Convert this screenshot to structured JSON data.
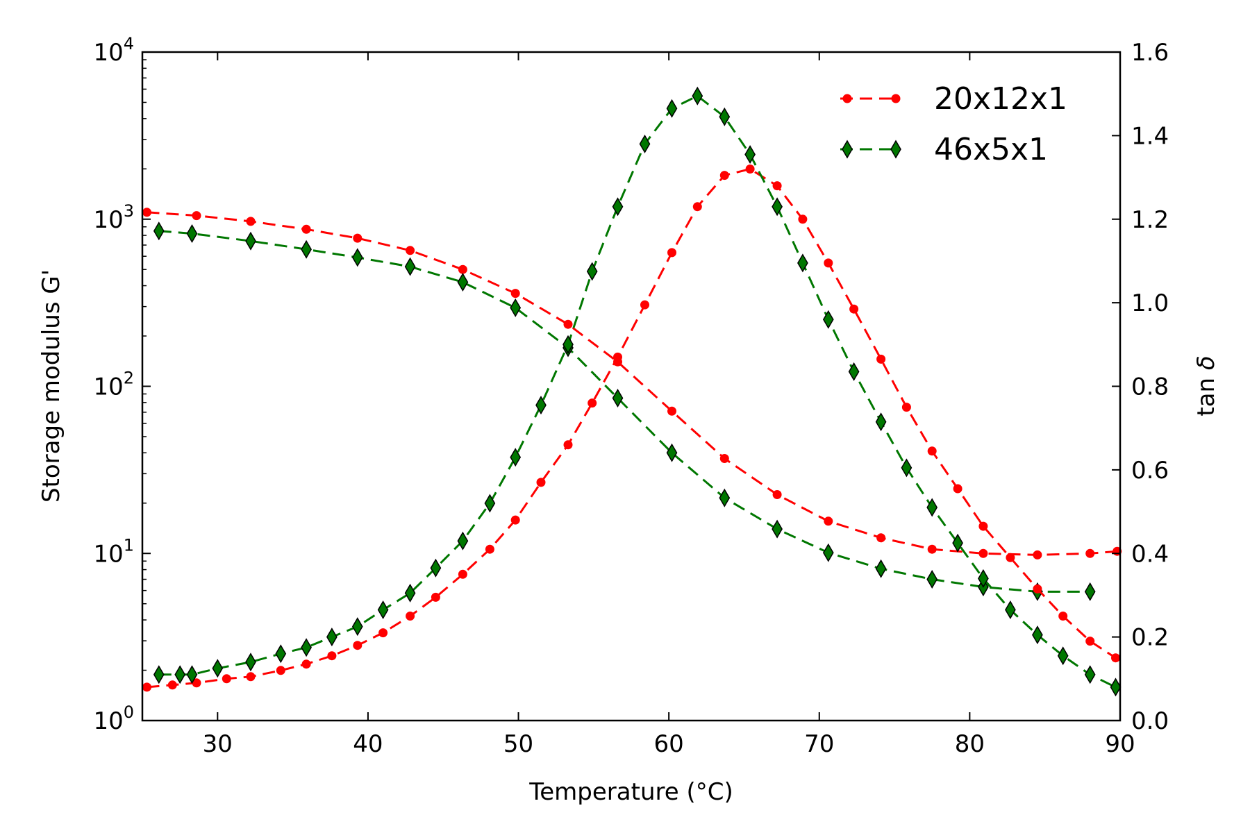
{
  "chart_data": {
    "type": "line",
    "xlabel": "Temperature (°C)",
    "ylabel_left": "Storage modulus G'",
    "ylabel_right_prefix": "tan ",
    "ylabel_right_symbol": "δ",
    "xlim": [
      25,
      90
    ],
    "ylim_left_log10": [
      0,
      4
    ],
    "ylim_right": [
      0.0,
      1.6
    ],
    "left_scale": "log",
    "grid": false,
    "legend_position": "top-right",
    "x_ticks": [
      "30",
      "40",
      "50",
      "60",
      "70",
      "80",
      "90"
    ],
    "left_ticks": [
      {
        "base": "10",
        "exp": "0"
      },
      {
        "base": "10",
        "exp": "1"
      },
      {
        "base": "10",
        "exp": "2"
      },
      {
        "base": "10",
        "exp": "3"
      },
      {
        "base": "10",
        "exp": "4"
      }
    ],
    "right_ticks": [
      "0.0",
      "0.2",
      "0.4",
      "0.6",
      "0.8",
      "1.0",
      "1.2",
      "1.4",
      "1.6"
    ],
    "series": [
      {
        "name": "20x12x1",
        "color": "#ff0000",
        "marker": "circle",
        "axis": "left",
        "x": [
          25.3,
          28.6,
          32.2,
          35.9,
          39.3,
          42.8,
          46.3,
          49.8,
          53.3,
          56.6,
          60.2,
          63.7,
          67.2,
          70.6,
          74.1,
          77.5,
          80.9,
          84.5,
          88.0,
          89.8
        ],
        "y": [
          1100,
          1050,
          970,
          870,
          770,
          650,
          500,
          360,
          235,
          140,
          71,
          37,
          22.5,
          15.6,
          12.4,
          10.6,
          10.0,
          9.8,
          10.0,
          10.3
        ]
      },
      {
        "name": "46x5x1",
        "color": "#007700",
        "marker": "diamond",
        "axis": "left",
        "x": [
          26.1,
          28.3,
          32.2,
          35.9,
          39.3,
          42.8,
          46.3,
          49.8,
          53.3,
          56.6,
          60.2,
          63.7,
          67.2,
          70.6,
          74.1,
          77.5,
          80.9,
          84.5,
          88.0
        ],
        "y": [
          850,
          820,
          740,
          660,
          590,
          520,
          420,
          295,
          170,
          85,
          40,
          21.5,
          14,
          10.1,
          8.1,
          7.0,
          6.3,
          5.9,
          5.9
        ]
      },
      {
        "name": "20x12x1",
        "color": "#ff0000",
        "marker": "circle",
        "axis": "right",
        "x": [
          25.3,
          27.0,
          28.6,
          30.6,
          32.2,
          34.2,
          35.9,
          37.6,
          39.3,
          41.0,
          42.8,
          44.5,
          46.3,
          48.1,
          49.8,
          51.5,
          53.3,
          54.9,
          56.6,
          58.4,
          60.2,
          61.9,
          63.7,
          65.4,
          67.2,
          68.9,
          70.6,
          72.3,
          74.1,
          75.8,
          77.5,
          79.2,
          80.9,
          82.7,
          84.5,
          86.2,
          88.0,
          89.7
        ],
        "y": [
          0.08,
          0.085,
          0.09,
          0.1,
          0.105,
          0.12,
          0.135,
          0.155,
          0.18,
          0.21,
          0.25,
          0.295,
          0.35,
          0.41,
          0.48,
          0.57,
          0.66,
          0.76,
          0.87,
          0.995,
          1.12,
          1.23,
          1.305,
          1.32,
          1.28,
          1.2,
          1.095,
          0.985,
          0.865,
          0.75,
          0.645,
          0.555,
          0.465,
          0.39,
          0.315,
          0.25,
          0.19,
          0.15
        ]
      },
      {
        "name": "46x5x1",
        "color": "#007700",
        "marker": "diamond",
        "axis": "right",
        "x": [
          26.1,
          27.5,
          28.3,
          30.0,
          32.2,
          34.2,
          35.9,
          37.6,
          39.3,
          41.0,
          42.8,
          44.5,
          46.3,
          48.1,
          49.8,
          51.5,
          53.3,
          54.9,
          56.6,
          58.4,
          60.2,
          61.9,
          63.7,
          65.4,
          67.2,
          68.9,
          70.6,
          72.3,
          74.1,
          75.8,
          77.5,
          79.2,
          80.9,
          82.7,
          84.5,
          86.2,
          88.0,
          89.7
        ],
        "y": [
          0.11,
          0.11,
          0.11,
          0.125,
          0.14,
          0.16,
          0.175,
          0.2,
          0.225,
          0.265,
          0.305,
          0.365,
          0.43,
          0.52,
          0.63,
          0.755,
          0.9,
          1.075,
          1.23,
          1.38,
          1.465,
          1.495,
          1.445,
          1.355,
          1.23,
          1.095,
          0.96,
          0.835,
          0.715,
          0.605,
          0.51,
          0.425,
          0.34,
          0.265,
          0.205,
          0.155,
          0.11,
          0.08
        ]
      }
    ]
  }
}
